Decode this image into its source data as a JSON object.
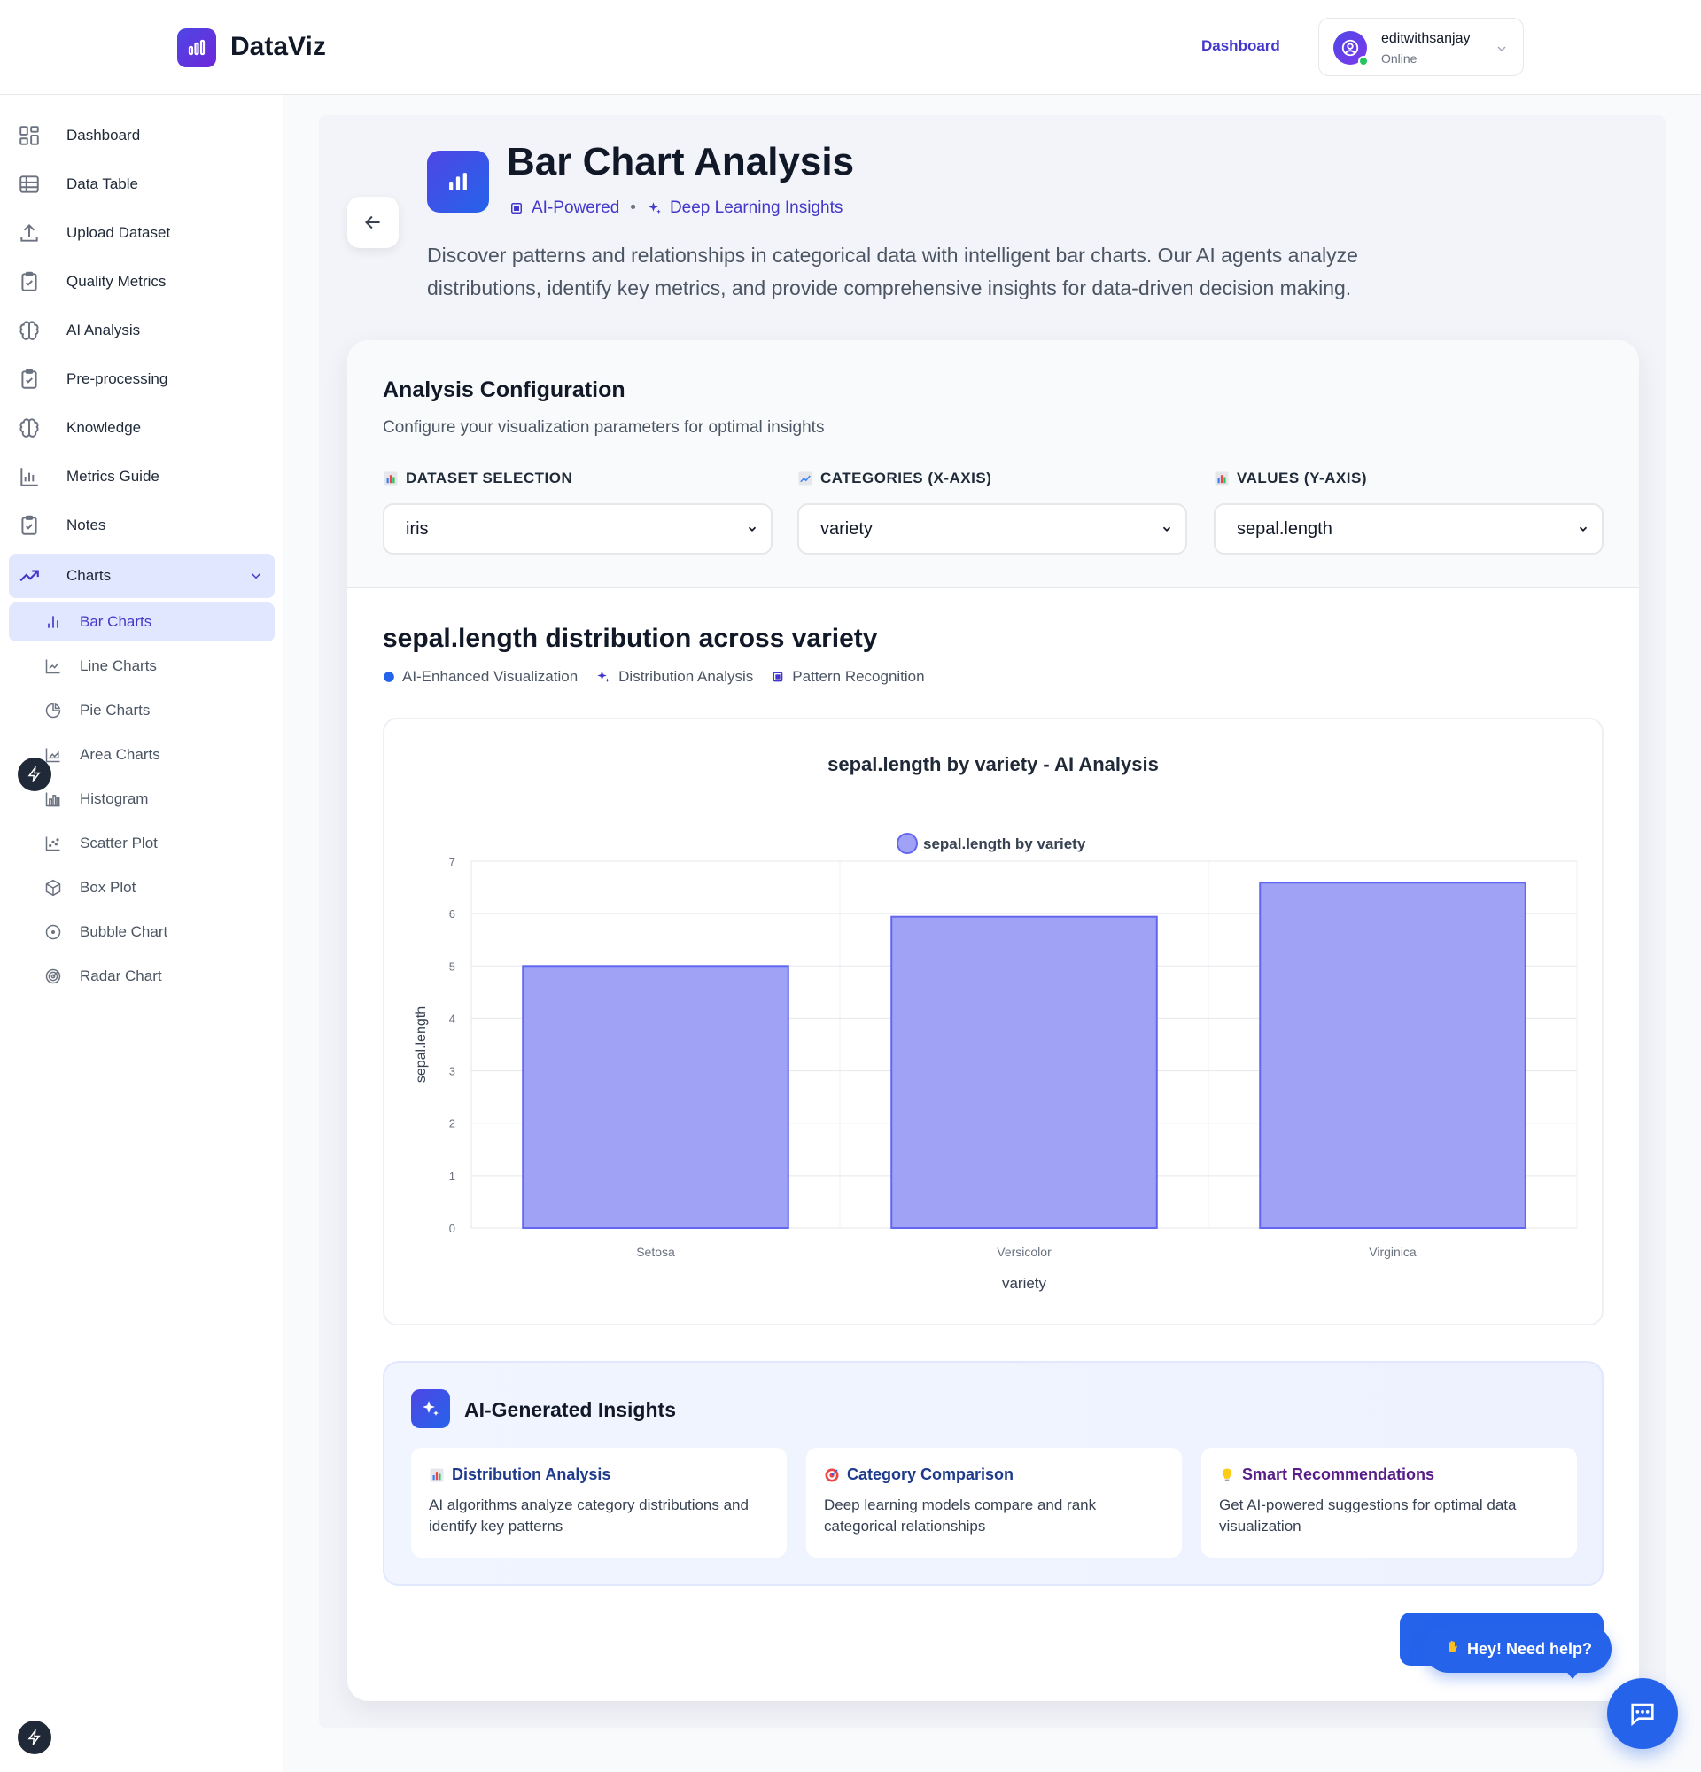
{
  "header": {
    "app_name": "DataViz",
    "nav_dashboard": "Dashboard",
    "user_name": "editwithsanjay",
    "user_status": "Online"
  },
  "sidebar": {
    "items": [
      {
        "label": "Dashboard",
        "icon": "grid-icon"
      },
      {
        "label": "Data Table",
        "icon": "table-icon"
      },
      {
        "label": "Upload Dataset",
        "icon": "upload-icon"
      },
      {
        "label": "Quality Metrics",
        "icon": "clipboard-check-icon"
      },
      {
        "label": "AI Analysis",
        "icon": "brain-icon"
      },
      {
        "label": "Pre-processing",
        "icon": "clipboard-check-icon"
      },
      {
        "label": "Knowledge",
        "icon": "brain-icon"
      },
      {
        "label": "Metrics Guide",
        "icon": "bar-chart-icon"
      },
      {
        "label": "Notes",
        "icon": "clipboard-check-icon"
      },
      {
        "label": "Charts",
        "icon": "trending-up-icon"
      }
    ],
    "chart_items": [
      {
        "label": "Bar Charts",
        "icon": "bar-chart-icon"
      },
      {
        "label": "Line Charts",
        "icon": "line-chart-icon"
      },
      {
        "label": "Pie Charts",
        "icon": "pie-chart-icon"
      },
      {
        "label": "Area Charts",
        "icon": "area-chart-icon"
      },
      {
        "label": "Histogram",
        "icon": "histogram-icon"
      },
      {
        "label": "Scatter Plot",
        "icon": "scatter-icon"
      },
      {
        "label": "Box Plot",
        "icon": "box-icon"
      },
      {
        "label": "Bubble Chart",
        "icon": "bubble-icon"
      },
      {
        "label": "Radar Chart",
        "icon": "radar-icon"
      }
    ]
  },
  "page": {
    "title": "Bar Chart Analysis",
    "tag1": "AI-Powered",
    "tag2": "Deep Learning Insights",
    "description": "Discover patterns and relationships in categorical data with intelligent bar charts. Our AI agents analyze distributions, identify key metrics, and provide comprehensive insights for data-driven decision making."
  },
  "config": {
    "title": "Analysis Configuration",
    "subtitle": "Configure your visualization parameters for optimal insights",
    "dataset_label": "DATASET SELECTION",
    "dataset_value": "iris",
    "categories_label": "CATEGORIES (X-AXIS)",
    "categories_value": "variety",
    "values_label": "VALUES (Y-AXIS)",
    "values_value": "sepal.length"
  },
  "chart_section": {
    "heading": "sepal.length distribution across variety",
    "tag1": "AI-Enhanced Visualization",
    "tag2": "Distribution Analysis",
    "tag3": "Pattern Recognition"
  },
  "chart_data": {
    "type": "bar",
    "title": "sepal.length by variety - AI Analysis",
    "categories": [
      "Setosa",
      "Versicolor",
      "Virginica"
    ],
    "series": [
      {
        "name": "sepal.length by variety",
        "values": [
          5.0,
          5.94,
          6.59
        ]
      }
    ],
    "xlabel": "variety",
    "ylabel": "sepal.length",
    "ylim": [
      0,
      7
    ],
    "yticks": [
      0,
      1,
      2,
      3,
      4,
      5,
      6,
      7
    ],
    "grid": true,
    "legend": "top",
    "bar_color": "#a0a3f5",
    "bar_border": "#6366f1"
  },
  "insights": {
    "title": "AI-Generated Insights",
    "cards": [
      {
        "title": "Distribution Analysis",
        "body": "AI algorithms analyze category distributions and identify key patterns",
        "color": "#1e3a8a"
      },
      {
        "title": "Category Comparison",
        "body": "Deep learning models compare and rank categorical relationships",
        "color": "#1e3a8a"
      },
      {
        "title": "Smart Recommendations",
        "body": "Get AI-powered suggestions for optimal data visualization",
        "color": "#581c87"
      }
    ]
  },
  "help": {
    "bubble": "Hey! Need help?"
  }
}
